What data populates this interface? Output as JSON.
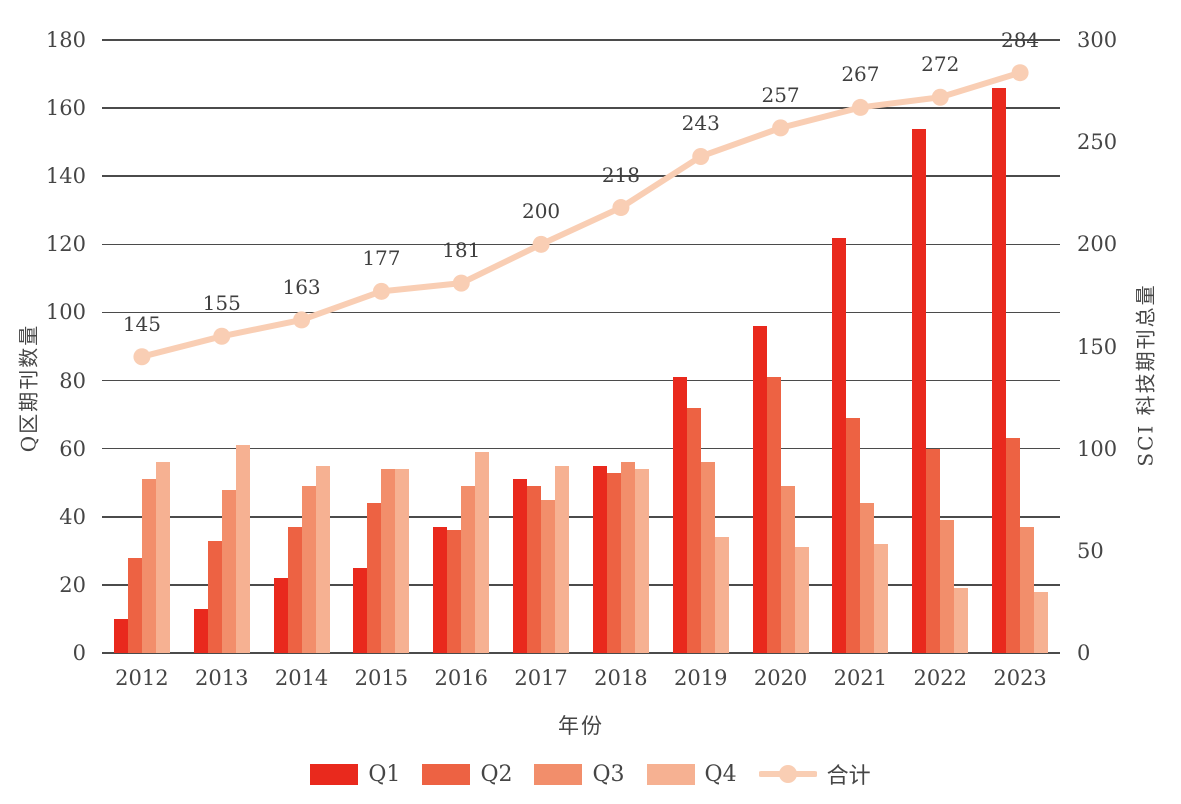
{
  "chart_data": {
    "type": "bar+line",
    "categories": [
      "2012",
      "2013",
      "2014",
      "2015",
      "2016",
      "2017",
      "2018",
      "2019",
      "2020",
      "2021",
      "2022",
      "2023"
    ],
    "series": [
      {
        "name": "Q1",
        "color": "#e9291d",
        "values": [
          10,
          13,
          22,
          25,
          37,
          51,
          55,
          81,
          96,
          122,
          154,
          166
        ]
      },
      {
        "name": "Q2",
        "color": "#ed6243",
        "values": [
          28,
          33,
          37,
          44,
          36,
          49,
          53,
          72,
          81,
          69,
          60,
          63
        ]
      },
      {
        "name": "Q3",
        "color": "#f28e6b",
        "values": [
          51,
          48,
          49,
          54,
          49,
          45,
          56,
          56,
          49,
          44,
          39,
          37
        ]
      },
      {
        "name": "Q4",
        "color": "#f6b192",
        "values": [
          56,
          61,
          55,
          54,
          59,
          55,
          54,
          34,
          31,
          32,
          19,
          18
        ]
      }
    ],
    "line_series": {
      "name": "合计",
      "color": "#f9ceb4",
      "values": [
        145,
        155,
        163,
        177,
        181,
        200,
        218,
        243,
        257,
        267,
        272,
        284
      ],
      "data_labels": [
        "145",
        "155",
        "163",
        "177",
        "181",
        "200",
        "218",
        "243",
        "257",
        "267",
        "272",
        "284"
      ]
    },
    "xlabel": "年份",
    "ylabel_left": "Q区期刊数量",
    "ylabel_right": "SCI 科技期刊总量",
    "y_left": {
      "min": 0,
      "max": 180,
      "step": 20,
      "tick_labels": [
        "0",
        "20",
        "40",
        "60",
        "80",
        "100",
        "120",
        "140",
        "160",
        "180"
      ]
    },
    "y_right": {
      "min": 0,
      "max": 300,
      "step": 50,
      "tick_labels": [
        "0",
        "50",
        "100",
        "150",
        "200",
        "250",
        "300"
      ]
    },
    "grid": true,
    "legend_position": "bottom",
    "colors": {
      "text": "#454545",
      "gridline": "#4b4b4b"
    }
  }
}
